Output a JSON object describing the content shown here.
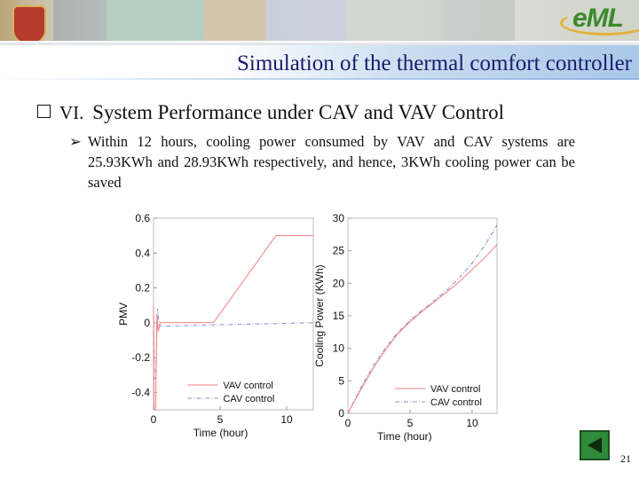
{
  "header": {
    "logo_text": "eML"
  },
  "slide": {
    "title": "Simulation of the thermal comfort controller",
    "section_number": "VI.",
    "section_title": "System Performance under CAV and VAV Control",
    "bullet": "Within 12 hours, cooling power consumed by VAV and CAV systems are 25.93KWh and 28.93KWh respectively, and hence, 3KWh cooling power can be saved",
    "page_number": "21"
  },
  "chart_data": [
    {
      "type": "line",
      "xlabel": "Time (hour)",
      "ylabel": "PMV",
      "xlim": [
        0,
        12
      ],
      "ylim": [
        -0.5,
        0.6
      ],
      "xticks": [
        "0",
        "5",
        "10"
      ],
      "yticks": [
        "0.6",
        "0.4",
        "0.2",
        "0",
        "-0.2",
        "-0.4"
      ],
      "legend_position": "bottom-right",
      "series": [
        {
          "name": "VAV control",
          "color": "#f08080",
          "style": "solid",
          "x": [
            0,
            0.03,
            0.15,
            0.25,
            0.35,
            0.5,
            4.5,
            9.2,
            12
          ],
          "y": [
            0.1,
            -0.5,
            -0.5,
            0.05,
            -0.05,
            0,
            0,
            0.5,
            0.5
          ]
        },
        {
          "name": "CAV control",
          "color": "#8c8ccc",
          "style": "dashdot",
          "x": [
            0,
            0.05,
            0.15,
            0.3,
            0.45,
            12
          ],
          "y": [
            0.1,
            -0.32,
            -0.32,
            0.08,
            -0.02,
            0
          ]
        }
      ]
    },
    {
      "type": "line",
      "xlabel": "Time (hour)",
      "ylabel": "Cooling Power (KWh)",
      "xlim": [
        0,
        12
      ],
      "ylim": [
        0,
        30
      ],
      "xticks": [
        "0",
        "5",
        "10"
      ],
      "yticks": [
        "30",
        "25",
        "20",
        "15",
        "10",
        "5",
        "0"
      ],
      "legend_position": "bottom-right",
      "series": [
        {
          "name": "VAV control",
          "color": "#f08080",
          "style": "solid",
          "x": [
            0,
            1,
            2,
            3,
            4,
            5,
            6,
            7,
            8,
            9,
            10,
            11,
            12
          ],
          "y": [
            0,
            3.5,
            6.8,
            9.7,
            12.2,
            14.1,
            15.7,
            17.2,
            18.7,
            20.3,
            22.1,
            23.9,
            25.93
          ]
        },
        {
          "name": "CAV control",
          "color": "#8c8ccc",
          "style": "dashdot",
          "x": [
            0,
            1,
            2,
            3,
            4,
            5,
            6,
            7,
            8,
            9,
            10,
            11,
            12
          ],
          "y": [
            0,
            3.8,
            7.2,
            10.0,
            12.4,
            14.3,
            15.9,
            17.4,
            19.0,
            20.9,
            23.1,
            25.8,
            28.93
          ]
        }
      ]
    }
  ]
}
